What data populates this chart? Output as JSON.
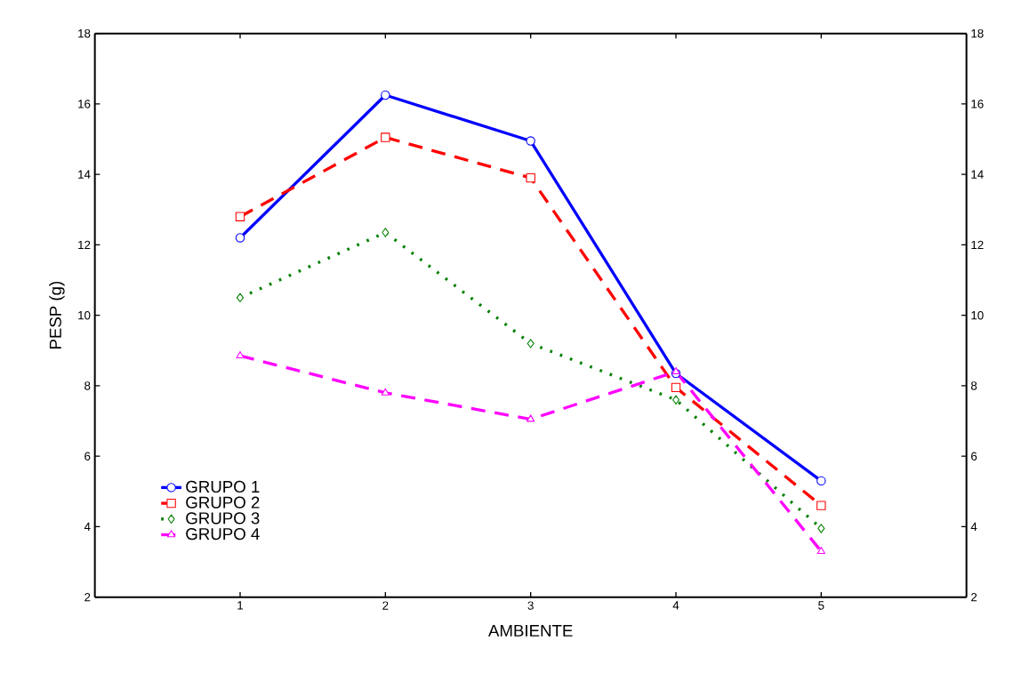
{
  "chart_data": {
    "type": "line",
    "xlabel": "AMBIENTE",
    "ylabel": "PESP (g)",
    "x": [
      1,
      2,
      3,
      4,
      5
    ],
    "series": [
      {
        "name": "GRUPO 1",
        "color": "#0000ff",
        "marker": "circle",
        "line_style": "solid",
        "values": [
          12.2,
          16.25,
          14.95,
          8.35,
          5.3
        ]
      },
      {
        "name": "GRUPO 2",
        "color": "#ff0000",
        "marker": "square",
        "line_style": "dashed",
        "values": [
          12.8,
          15.05,
          13.9,
          7.95,
          4.6
        ]
      },
      {
        "name": "GRUPO 3",
        "color": "#008000",
        "marker": "diamond",
        "line_style": "dotted",
        "values": [
          10.5,
          12.35,
          9.2,
          7.6,
          3.95
        ]
      },
      {
        "name": "GRUPO 4",
        "color": "#ff00ff",
        "marker": "triangle",
        "line_style": "dashed",
        "values": [
          8.85,
          7.8,
          7.05,
          8.4,
          3.3
        ]
      }
    ],
    "xlim": [
      0,
      6
    ],
    "xticks": [
      1,
      2,
      3,
      4,
      5
    ],
    "ylim": [
      2,
      18
    ],
    "yticks": [
      2,
      4,
      6,
      8,
      10,
      12,
      14,
      16,
      18
    ],
    "y2lim": [
      2,
      18
    ],
    "y2ticks": [
      2,
      4,
      6,
      8,
      10,
      12,
      14,
      16,
      18
    ],
    "grid": false,
    "legend": "bottom left"
  }
}
